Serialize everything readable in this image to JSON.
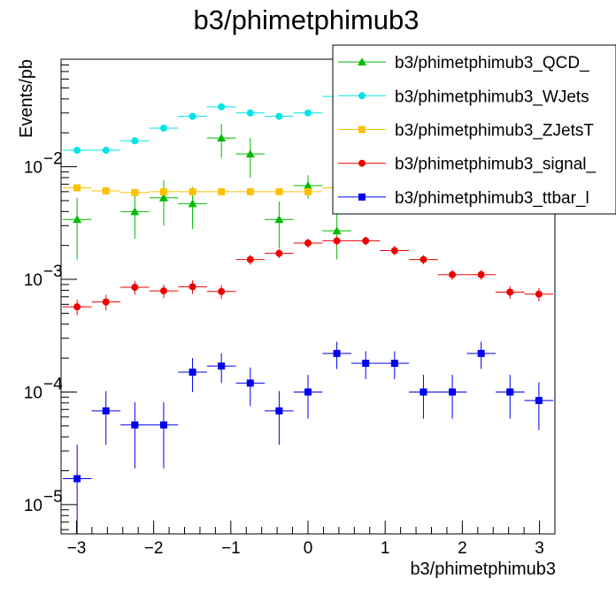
{
  "chart_data": {
    "type": "scatter",
    "title": "b3/phimetphimub3",
    "xlabel": "b3/phimetphimub3",
    "ylabel": "Events/pb",
    "xlim": [
      -3.2,
      3.2
    ],
    "ylim": [
      5.5e-06,
      0.09
    ],
    "yscale": "log",
    "grid": false,
    "legend": "top-right",
    "x_ticks": [
      -3,
      -2,
      -1,
      0,
      1,
      2,
      3
    ],
    "x_tick_labels": [
      "−3",
      "−2",
      "−1",
      "0",
      "1",
      "2",
      "3"
    ],
    "y_ticks": [
      1e-05,
      0.0001,
      0.001,
      0.01
    ],
    "y_tick_labels": [
      {
        "base": "10",
        "exp": "−5"
      },
      {
        "base": "10",
        "exp": "−4"
      },
      {
        "base": "10",
        "exp": "−3"
      },
      {
        "base": "10",
        "exp": "−2"
      }
    ],
    "x": [
      -2.992,
      -2.618,
      -2.244,
      -1.87,
      -1.496,
      -1.122,
      -0.748,
      -0.374,
      0.0,
      0.374,
      0.748,
      1.122,
      1.496,
      1.87,
      2.244,
      2.618,
      2.992
    ],
    "bin_half_width": 0.187,
    "series": [
      {
        "name": "b3/phimetphimub3_QCD_",
        "color": "#00bb00",
        "marker": "triangle",
        "y": [
          0.0034,
          null,
          0.004,
          0.0053,
          0.0047,
          0.018,
          0.013,
          0.0034,
          0.0068,
          0.0027,
          null,
          null,
          null,
          null,
          null,
          null,
          null
        ],
        "yerr": [
          0.0019,
          null,
          0.0017,
          0.0023,
          0.0019,
          0.006,
          0.005,
          0.0015,
          0.0016,
          0.0012,
          null,
          null,
          null,
          null,
          null,
          null,
          null
        ]
      },
      {
        "name": "b3/phimetphimub3_WJets",
        "color": "#00e5e5",
        "marker": "circle",
        "y": [
          0.014,
          0.014,
          0.017,
          0.022,
          0.028,
          0.034,
          0.03,
          0.028,
          0.03,
          0.042,
          0.039,
          null,
          null,
          null,
          null,
          null,
          null
        ]
      },
      {
        "name": "b3/phimetphimub3_ZJetsT",
        "color": "#ffc000",
        "marker": "square",
        "y": [
          0.0065,
          0.0061,
          0.0059,
          0.006,
          0.006,
          0.006,
          0.006,
          0.006,
          0.006,
          0.0065,
          null,
          null,
          null,
          null,
          null,
          null,
          null
        ]
      },
      {
        "name": "b3/phimetphimub3_signal_",
        "color": "#ee0000",
        "marker": "circle",
        "y": [
          0.00057,
          0.00063,
          0.00085,
          0.00079,
          0.00086,
          0.00078,
          0.0015,
          0.0017,
          0.0021,
          0.0022,
          0.0022,
          0.0018,
          0.0015,
          0.0011,
          0.0011,
          0.00077,
          0.00074
        ],
        "yerr": [
          9e-05,
          0.0001,
          0.00012,
          0.00011,
          0.00012,
          0.00011,
          0.00015,
          0.00016,
          0.0002,
          0.0002,
          0.0002,
          0.00017,
          0.00014,
          0.00011,
          0.00011,
          0.0001,
          0.0001
        ]
      },
      {
        "name": "b3/phimetphimub3_ttbar_l",
        "color": "#0000ee",
        "marker": "square",
        "y": [
          1.7e-05,
          6.8e-05,
          5.1e-05,
          5.1e-05,
          0.00015,
          0.00017,
          0.00012,
          6.8e-05,
          0.0001,
          0.00022,
          0.00018,
          0.00018,
          0.0001,
          0.0001,
          0.00022,
          0.0001,
          8.4e-05
        ],
        "yerr": [
          1.7e-05,
          3.4e-05,
          3e-05,
          3e-05,
          5e-05,
          5e-05,
          4.5e-05,
          3.4e-05,
          4.2e-05,
          6e-05,
          5e-05,
          5e-05,
          4.2e-05,
          4.2e-05,
          6e-05,
          4.2e-05,
          3.8e-05
        ]
      }
    ]
  }
}
